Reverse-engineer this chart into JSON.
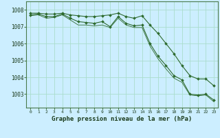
{
  "x": [
    0,
    1,
    2,
    3,
    4,
    5,
    6,
    7,
    8,
    9,
    10,
    11,
    12,
    13,
    14,
    15,
    16,
    17,
    18,
    19,
    20,
    21,
    22,
    23
  ],
  "line_top": [
    1007.8,
    1007.8,
    1007.75,
    1007.75,
    1007.8,
    1007.7,
    1007.65,
    1007.6,
    1007.6,
    1007.65,
    1007.7,
    1007.8,
    1007.6,
    1007.5,
    1007.65,
    1007.1,
    1006.6,
    1006.0,
    1005.4,
    1004.7,
    1004.1,
    1003.9,
    1003.9,
    1003.5
  ],
  "line_mid": [
    1007.7,
    1007.75,
    1007.6,
    1007.6,
    1007.75,
    1007.5,
    1007.3,
    1007.25,
    1007.2,
    1007.3,
    1007.0,
    1007.6,
    1007.2,
    1007.05,
    1007.1,
    1006.0,
    1005.25,
    1004.7,
    1004.1,
    1003.85,
    1003.0,
    1002.95,
    1003.0,
    1002.65
  ],
  "line_bot": [
    1007.65,
    1007.7,
    1007.5,
    1007.55,
    1007.7,
    1007.4,
    1007.1,
    1007.1,
    1007.05,
    1007.1,
    1006.95,
    1007.5,
    1007.1,
    1006.95,
    1006.95,
    1005.85,
    1005.1,
    1004.5,
    1003.95,
    1003.7,
    1002.95,
    1002.9,
    1002.95,
    1002.55
  ],
  "bg_color": "#cceeff",
  "grid_color": "#aaddcc",
  "line_color": "#2d6a2d",
  "marker": "D",
  "ylabel_values": [
    1003,
    1004,
    1005,
    1006,
    1007,
    1008
  ],
  "xlabel": "Graphe pression niveau de la mer (hPa)",
  "ylim": [
    1002.2,
    1008.5
  ],
  "xlim": [
    -0.5,
    23.5
  ]
}
